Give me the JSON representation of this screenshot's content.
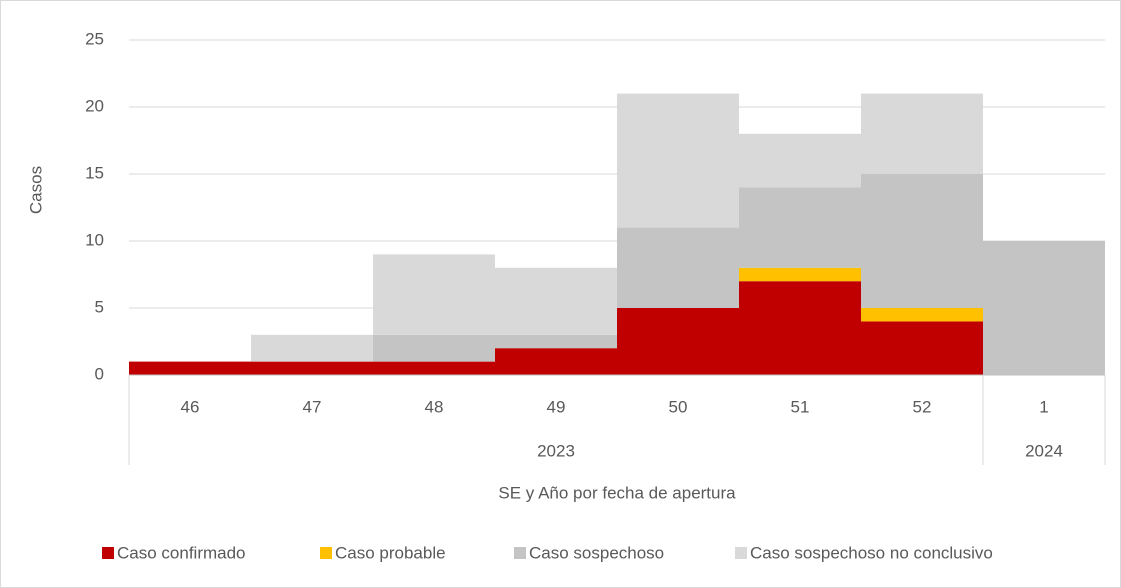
{
  "chart_data": {
    "type": "stacked-bar",
    "y_label": "Casos",
    "x_label": "SE y Año por fecha de apertura",
    "groups": [
      {
        "label": "2023",
        "categories": [
          "46",
          "47",
          "48",
          "49",
          "50",
          "51",
          "52"
        ]
      },
      {
        "label": "2024",
        "categories": [
          "1"
        ]
      }
    ],
    "series": [
      {
        "name": "Caso confirmado",
        "color": "#c00000",
        "values": [
          1,
          1,
          1,
          2,
          5,
          7,
          4,
          0
        ]
      },
      {
        "name": "Caso probable",
        "color": "#ffc000",
        "values": [
          0,
          0,
          0,
          0,
          0,
          1,
          1,
          0
        ]
      },
      {
        "name": "Caso sospechoso",
        "color": "#c4c4c4",
        "values": [
          0,
          0,
          2,
          1,
          6,
          6,
          10,
          10
        ]
      },
      {
        "name": "Caso sospechoso no conclusivo",
        "color": "#d9d9d9",
        "values": [
          0,
          2,
          6,
          5,
          10,
          4,
          6,
          0
        ]
      }
    ],
    "ylim": [
      0,
      25
    ],
    "yticks": [
      0,
      5,
      10,
      15,
      20,
      25
    ],
    "grid": true,
    "legend": "bottom"
  }
}
